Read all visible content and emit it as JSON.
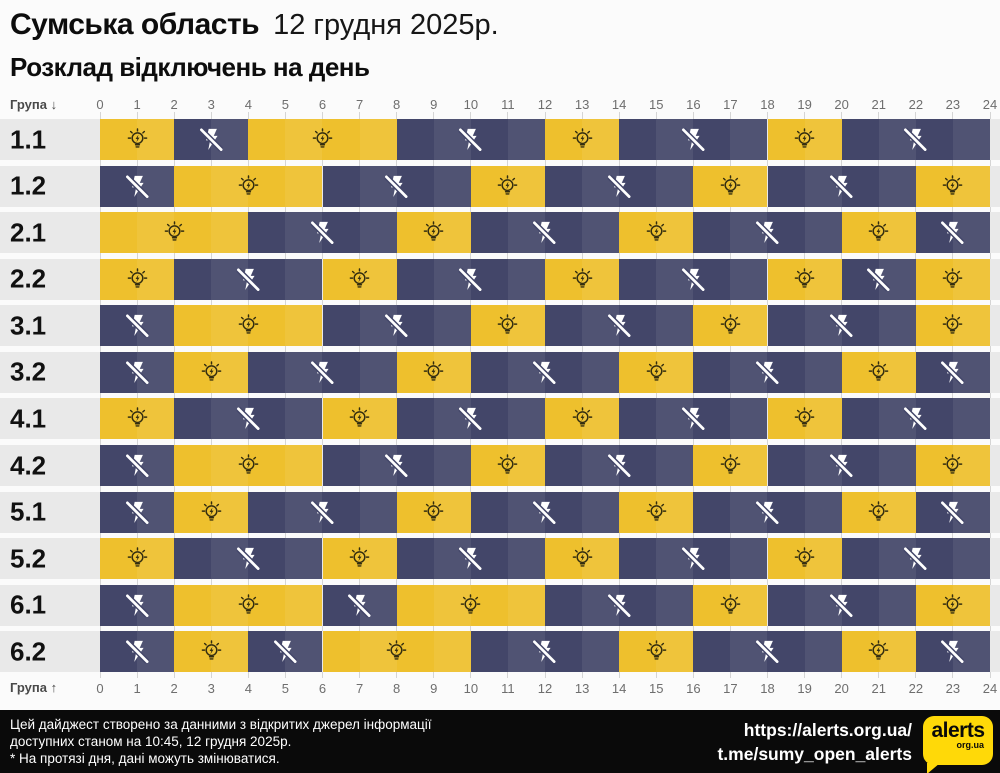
{
  "header": {
    "region": "Сумська область",
    "date": "12 грудня 2025р.",
    "subtitle": "Розклад відключень на день"
  },
  "axis": {
    "group_label_top": "Група ↓",
    "group_label_bottom": "Група ↑"
  },
  "icons": {
    "on": "lightbulb-icon",
    "off": "flash-off-icon"
  },
  "chart_data": {
    "type": "heatmap",
    "title": "Розклад відключень на день",
    "x_ticks": [
      "0",
      "1",
      "2",
      "3",
      "4",
      "5",
      "6",
      "7",
      "8",
      "9",
      "10",
      "11",
      "12",
      "13",
      "14",
      "15",
      "16",
      "17",
      "18",
      "19",
      "20",
      "21",
      "22",
      "23",
      "24"
    ],
    "x_range": [
      0,
      24
    ],
    "unit": "hour",
    "states": {
      "1": "світло є (power on)",
      "0": "відключення (power off)"
    },
    "colors": {
      "on": "#EEC02D",
      "off": "#434669",
      "row_band": "#E9E9E9",
      "footer": "#0A0A0A",
      "logo": "#FFD908"
    },
    "rows": [
      {
        "group": "1.1",
        "hours": [
          1,
          1,
          0,
          0,
          1,
          1,
          1,
          1,
          0,
          0,
          0,
          0,
          1,
          1,
          0,
          0,
          0,
          0,
          1,
          1,
          0,
          0,
          0,
          0
        ]
      },
      {
        "group": "1.2",
        "hours": [
          0,
          0,
          1,
          1,
          1,
          1,
          0,
          0,
          0,
          0,
          1,
          1,
          0,
          0,
          0,
          0,
          1,
          1,
          0,
          0,
          0,
          0,
          1,
          1
        ]
      },
      {
        "group": "2.1",
        "hours": [
          1,
          1,
          1,
          1,
          0,
          0,
          0,
          0,
          1,
          1,
          0,
          0,
          0,
          0,
          1,
          1,
          0,
          0,
          0,
          0,
          1,
          1,
          0,
          0
        ]
      },
      {
        "group": "2.2",
        "hours": [
          1,
          1,
          0,
          0,
          0,
          0,
          1,
          1,
          0,
          0,
          0,
          0,
          1,
          1,
          0,
          0,
          0,
          0,
          1,
          1,
          0,
          0,
          1,
          1
        ]
      },
      {
        "group": "3.1",
        "hours": [
          0,
          0,
          1,
          1,
          1,
          1,
          0,
          0,
          0,
          0,
          1,
          1,
          0,
          0,
          0,
          0,
          1,
          1,
          0,
          0,
          0,
          0,
          1,
          1
        ]
      },
      {
        "group": "3.2",
        "hours": [
          0,
          0,
          1,
          1,
          0,
          0,
          0,
          0,
          1,
          1,
          0,
          0,
          0,
          0,
          1,
          1,
          0,
          0,
          0,
          0,
          1,
          1,
          0,
          0
        ]
      },
      {
        "group": "4.1",
        "hours": [
          1,
          1,
          0,
          0,
          0,
          0,
          1,
          1,
          0,
          0,
          0,
          0,
          1,
          1,
          0,
          0,
          0,
          0,
          1,
          1,
          0,
          0,
          0,
          0
        ]
      },
      {
        "group": "4.2",
        "hours": [
          0,
          0,
          1,
          1,
          1,
          1,
          0,
          0,
          0,
          0,
          1,
          1,
          0,
          0,
          0,
          0,
          1,
          1,
          0,
          0,
          0,
          0,
          1,
          1
        ]
      },
      {
        "group": "5.1",
        "hours": [
          0,
          0,
          1,
          1,
          0,
          0,
          0,
          0,
          1,
          1,
          0,
          0,
          0,
          0,
          1,
          1,
          0,
          0,
          0,
          0,
          1,
          1,
          0,
          0
        ]
      },
      {
        "group": "5.2",
        "hours": [
          1,
          1,
          0,
          0,
          0,
          0,
          1,
          1,
          0,
          0,
          0,
          0,
          1,
          1,
          0,
          0,
          0,
          0,
          1,
          1,
          0,
          0,
          0,
          0
        ]
      },
      {
        "group": "6.1",
        "hours": [
          0,
          0,
          1,
          1,
          1,
          1,
          0,
          0,
          1,
          1,
          1,
          1,
          0,
          0,
          0,
          0,
          1,
          1,
          0,
          0,
          0,
          0,
          1,
          1
        ]
      },
      {
        "group": "6.2",
        "hours": [
          0,
          0,
          1,
          1,
          0,
          0,
          1,
          1,
          1,
          1,
          0,
          0,
          0,
          0,
          1,
          1,
          0,
          0,
          0,
          0,
          1,
          1,
          0,
          0
        ]
      }
    ]
  },
  "footer": {
    "note_line1": "Цей дайджест створено за данними з відкритих джерел інформації",
    "note_line2": "доступних станом на 10:45, 12 грудня 2025р.",
    "note_line3": "* На протязі дня, дані можуть змінюватися.",
    "site_url": "https://alerts.org.ua/",
    "telegram": "t.me/sumy_open_alerts",
    "logo_text": "alerts",
    "logo_subtext": "org.ua"
  }
}
